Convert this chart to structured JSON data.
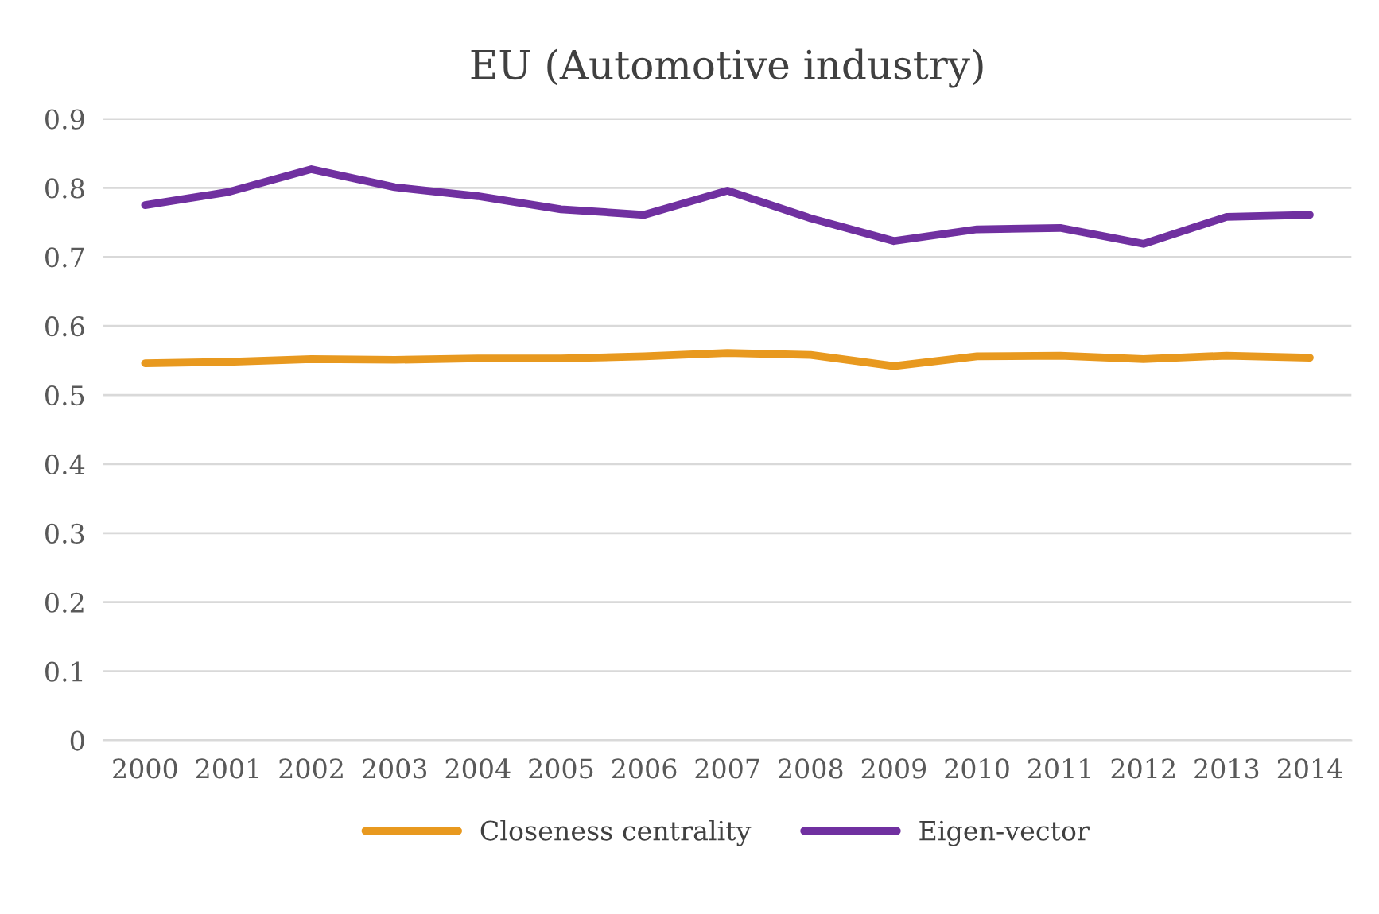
{
  "chart_data": {
    "type": "line",
    "title": "EU (Automotive industry)",
    "categories": [
      "2000",
      "2001",
      "2002",
      "2003",
      "2004",
      "2005",
      "2006",
      "2007",
      "2008",
      "2009",
      "2010",
      "2011",
      "2012",
      "2013",
      "2014"
    ],
    "series": [
      {
        "name": "Closeness centrality",
        "color": "#e8991f",
        "values": [
          0.546,
          0.548,
          0.552,
          0.551,
          0.553,
          0.553,
          0.556,
          0.561,
          0.558,
          0.542,
          0.556,
          0.557,
          0.552,
          0.557,
          0.554
        ]
      },
      {
        "name": "Eigen-vector",
        "color": "#7030a0",
        "values": [
          0.775,
          0.794,
          0.827,
          0.801,
          0.788,
          0.769,
          0.761,
          0.796,
          0.756,
          0.723,
          0.74,
          0.742,
          0.719,
          0.758,
          0.761
        ]
      }
    ],
    "ylim": [
      0,
      0.9
    ],
    "yticks": [
      {
        "value": 0,
        "label": "0"
      },
      0.1,
      0.2,
      0.3,
      0.4,
      0.5,
      0.6,
      0.7,
      0.8,
      0.9
    ],
    "grid": "y",
    "legend": "bottom",
    "marker": "none",
    "line_style": "solid"
  }
}
